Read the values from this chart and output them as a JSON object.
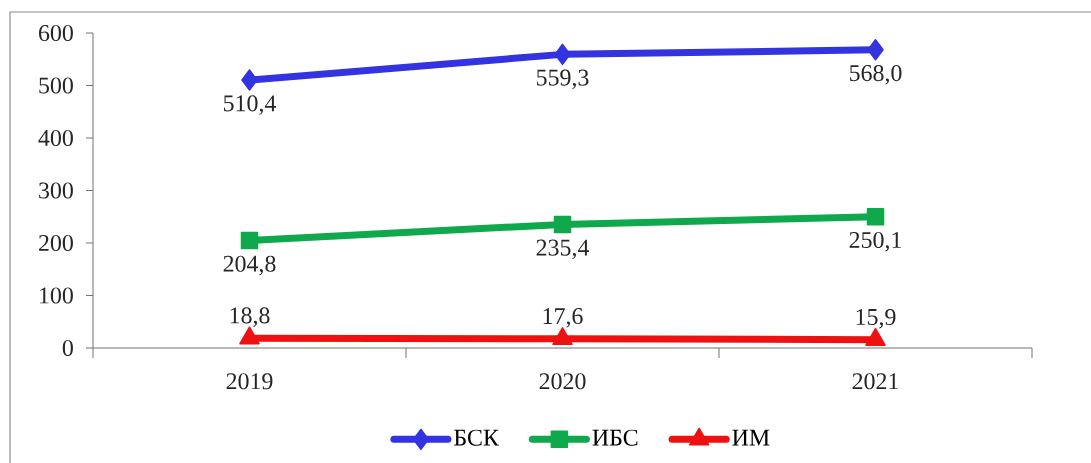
{
  "chart_data": {
    "type": "line",
    "categories": [
      "2019",
      "2020",
      "2021"
    ],
    "series": [
      {
        "name": "БСК",
        "color": "#3333e0",
        "marker": "diamond",
        "values": [
          510.4,
          559.3,
          568.0
        ],
        "value_labels": [
          "510,4",
          "559,3",
          "568,0"
        ]
      },
      {
        "name": "ИБС",
        "color": "#10a84c",
        "marker": "square",
        "values": [
          204.8,
          235.4,
          250.1
        ],
        "value_labels": [
          "204,8",
          "235,4",
          "250,1"
        ]
      },
      {
        "name": "ИМ",
        "color": "#ee1111",
        "marker": "triangle",
        "values": [
          18.8,
          17.6,
          15.9
        ],
        "value_labels": [
          "18,8",
          "17,6",
          "15,9"
        ]
      }
    ],
    "ylim": [
      0,
      600
    ],
    "yticks": [
      0,
      100,
      200,
      300,
      400,
      500,
      600
    ],
    "legend": "bottom",
    "line_style": "solid"
  }
}
